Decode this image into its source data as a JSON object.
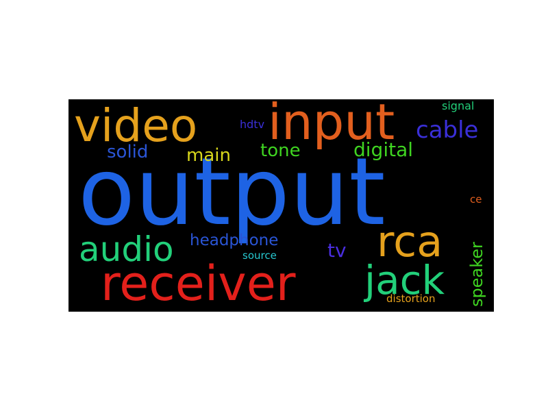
{
  "words": {
    "output": {
      "text": "output",
      "color": "#1e63e4"
    },
    "receiver": {
      "text": "receiver",
      "color": "#e3201b"
    },
    "input": {
      "text": "input",
      "color": "#e25f1e"
    },
    "video": {
      "text": "video",
      "color": "#e5a11d"
    },
    "rca": {
      "text": "rca",
      "color": "#e5a11d"
    },
    "jack": {
      "text": "jack",
      "color": "#22d07a"
    },
    "audio": {
      "text": "audio",
      "color": "#22d07a"
    },
    "cable": {
      "text": "cable",
      "color": "#3a2fd8"
    },
    "digital": {
      "text": "digital",
      "color": "#3fd421"
    },
    "headphone": {
      "text": "headphone",
      "color": "#2a55d6"
    },
    "solid": {
      "text": "solid",
      "color": "#2a55d6"
    },
    "main": {
      "text": "main",
      "color": "#d8d71c"
    },
    "tone": {
      "text": "tone",
      "color": "#3fd421"
    },
    "speaker": {
      "text": "speaker",
      "color": "#3fd421"
    },
    "tv": {
      "text": "tv",
      "color": "#4a2ee0"
    },
    "hdtv": {
      "text": "hdtv",
      "color": "#3a2fd8"
    },
    "signal": {
      "text": "signal",
      "color": "#22d07a"
    },
    "source": {
      "text": "source",
      "color": "#27c8d0"
    },
    "distortion": {
      "text": "distortion",
      "color": "#e5a11d"
    },
    "ce": {
      "text": "ce",
      "color": "#e25f1e"
    }
  }
}
